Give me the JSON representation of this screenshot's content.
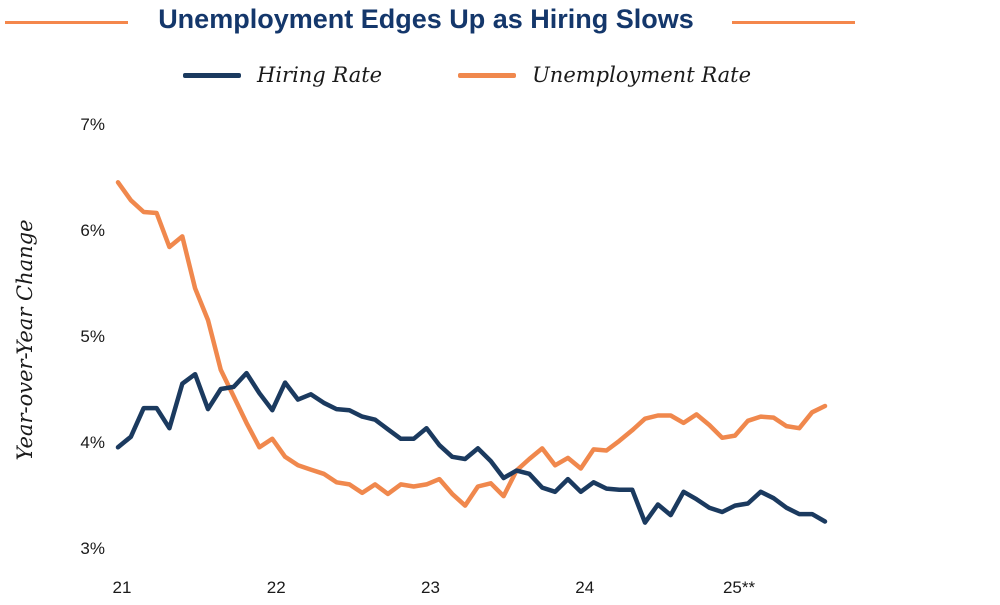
{
  "header": {
    "title": "Unemployment Edges Up as Hiring Slows"
  },
  "legend": {
    "items": [
      {
        "label": "Hiring Rate",
        "color": "#1B3A5F"
      },
      {
        "label": "Unemployment Rate",
        "color": "#F0884D"
      }
    ]
  },
  "colors": {
    "title_text": "#14376B",
    "title_rule": "#F4874C",
    "axis_text": "#1A1A1A",
    "hiring_line": "#1B3A5F",
    "unemployment_line": "#F0884D",
    "background": "#FFFFFF"
  },
  "chart_data": {
    "type": "line",
    "title": "Unemployment Edges Up as Hiring Slows",
    "xlabel": "",
    "ylabel": "Year-over-Year Change",
    "ylim": [
      3,
      7
    ],
    "grid": false,
    "legend_position": "top",
    "x_unit": "month",
    "x_start_label": "Jan 2021",
    "x_end_label": "Aug 2025",
    "x_tick_labels": [
      "21",
      "22",
      "23",
      "24",
      "25**"
    ],
    "x_tick_month_index": [
      0,
      12,
      24,
      36,
      48
    ],
    "y_tick_labels": [
      "7%",
      "6%",
      "5%",
      "4%",
      "3%"
    ],
    "y_tick_values": [
      7,
      6,
      5,
      4,
      3
    ],
    "series": [
      {
        "name": "Hiring Rate",
        "color": "#1B3A5F",
        "values": [
          3.95,
          4.05,
          4.32,
          4.32,
          4.13,
          4.55,
          4.64,
          4.31,
          4.5,
          4.52,
          4.65,
          4.46,
          4.3,
          4.56,
          4.4,
          4.45,
          4.37,
          4.31,
          4.3,
          4.24,
          4.21,
          4.12,
          4.03,
          4.03,
          4.13,
          3.97,
          3.86,
          3.84,
          3.94,
          3.82,
          3.66,
          3.73,
          3.7,
          3.57,
          3.53,
          3.65,
          3.53,
          3.62,
          3.56,
          3.55,
          3.55,
          3.24,
          3.41,
          3.31,
          3.53,
          3.46,
          3.38,
          3.34,
          3.4,
          3.42,
          3.53,
          3.47,
          3.38,
          3.32,
          3.32,
          3.25
        ]
      },
      {
        "name": "Unemployment Rate",
        "color": "#F0884D",
        "values": [
          6.45,
          6.28,
          6.17,
          6.16,
          5.84,
          5.94,
          5.45,
          5.15,
          4.68,
          4.43,
          4.18,
          3.95,
          4.03,
          3.86,
          3.78,
          3.74,
          3.7,
          3.62,
          3.6,
          3.52,
          3.6,
          3.51,
          3.6,
          3.58,
          3.6,
          3.65,
          3.51,
          3.4,
          3.58,
          3.61,
          3.49,
          3.73,
          3.84,
          3.94,
          3.78,
          3.85,
          3.75,
          3.93,
          3.92,
          4.01,
          4.11,
          4.22,
          4.25,
          4.25,
          4.18,
          4.26,
          4.16,
          4.04,
          4.06,
          4.2,
          4.24,
          4.23,
          4.15,
          4.13,
          4.28,
          4.34
        ]
      }
    ]
  }
}
